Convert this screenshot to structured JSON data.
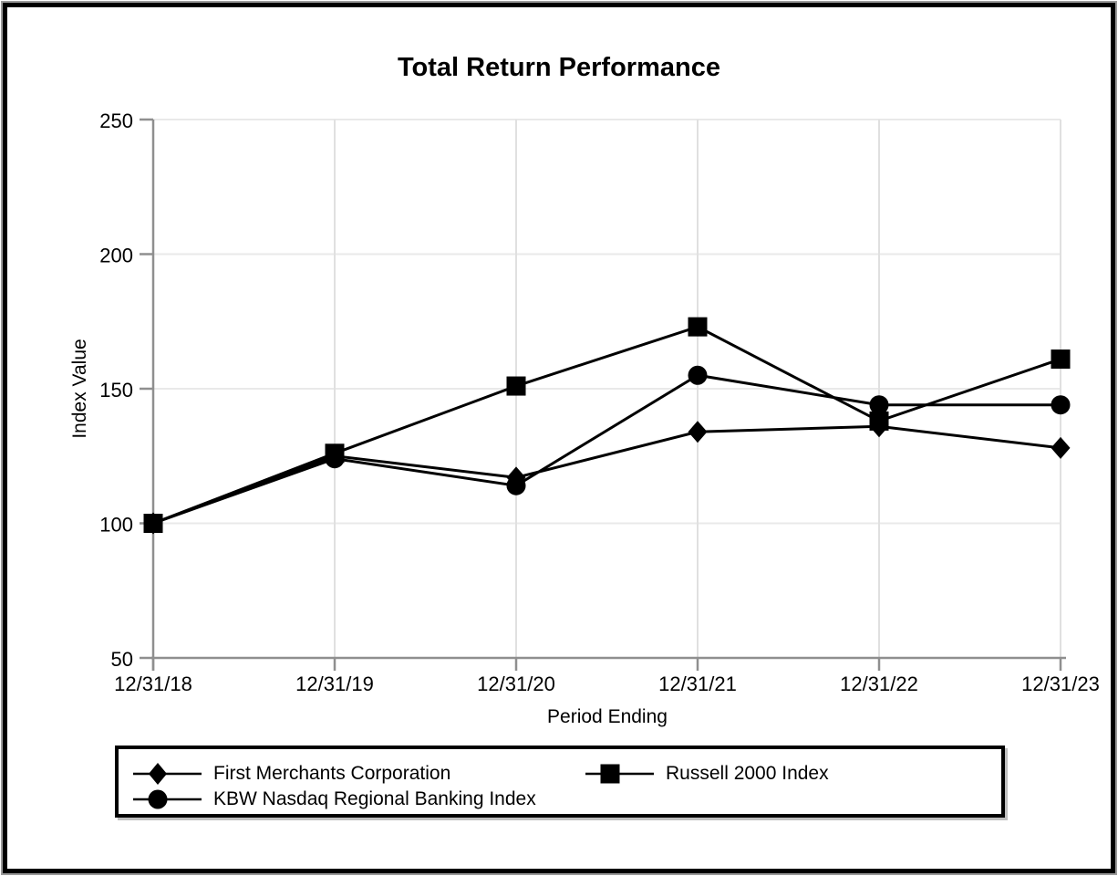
{
  "page": {
    "background": "#ffffff",
    "frame_border_color": "#000000"
  },
  "chart_data": {
    "type": "line",
    "title": "Total Return Performance",
    "xlabel": "Period Ending",
    "ylabel": "Index Value",
    "x_labels": [
      "12/31/18",
      "12/31/19",
      "12/31/20",
      "12/31/21",
      "12/31/22",
      "12/31/23"
    ],
    "y_ticks": [
      50,
      100,
      150,
      200,
      250
    ],
    "ylim": [
      50,
      250
    ],
    "grid": true,
    "legend_position": "boxed-below-plot",
    "line_color": "#000000",
    "axis_color": "#8f8f8f",
    "h_gridline_color": "#e9e9e9",
    "v_gridline_color": "#e0e0e0",
    "series": [
      {
        "name": "First Merchants Corporation",
        "marker": "diamond",
        "color": "#000000",
        "values": [
          100,
          125,
          117,
          134,
          136,
          128
        ]
      },
      {
        "name": "Russell 2000 Index",
        "marker": "square",
        "color": "#000000",
        "values": [
          100,
          126,
          151,
          173,
          138,
          161
        ]
      },
      {
        "name": "KBW Nasdaq Regional Banking Index",
        "marker": "circle",
        "color": "#000000",
        "values": [
          100,
          124,
          114,
          155,
          144,
          144
        ]
      }
    ]
  }
}
